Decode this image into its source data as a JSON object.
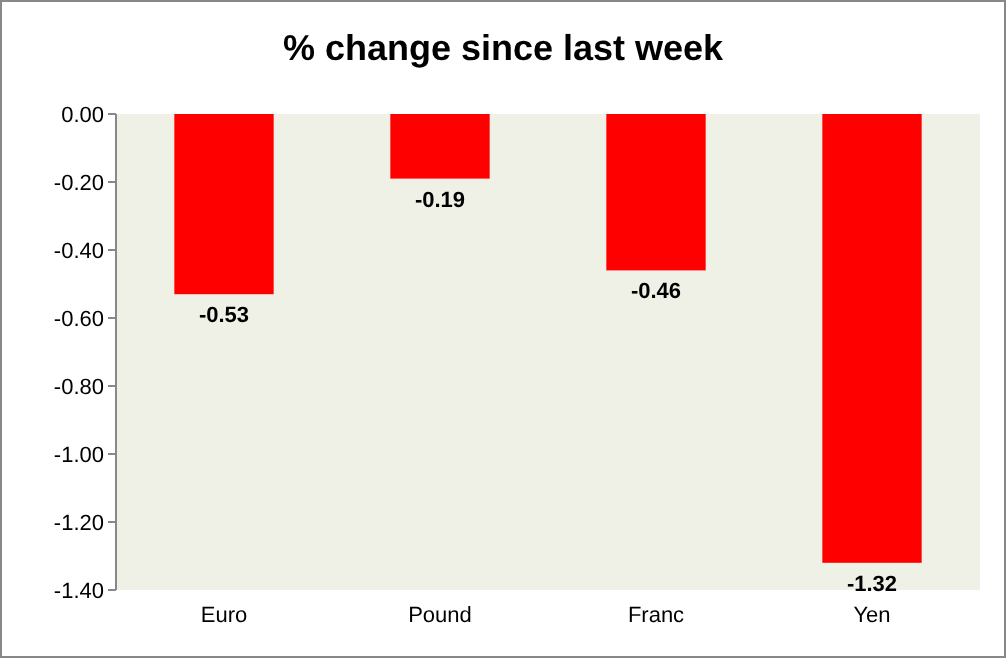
{
  "chart_data": {
    "type": "bar",
    "title": "% change since last week",
    "categories": [
      "Euro",
      "Pound",
      "Franc",
      "Yen"
    ],
    "values": [
      -0.53,
      -0.19,
      -0.46,
      -1.32
    ],
    "color": "#ff0000",
    "ylim": [
      -1.4,
      0
    ],
    "yticks": [
      {
        "value": 0,
        "label": "0.00"
      },
      {
        "value": -0.2,
        "label": "-0.20"
      },
      {
        "value": -0.4,
        "label": "-0.40"
      },
      {
        "value": -0.6,
        "label": "-0.60"
      },
      {
        "value": -0.8,
        "label": "-0.80"
      },
      {
        "value": -1,
        "label": "-1.00"
      },
      {
        "value": -1.2,
        "label": "-1.20"
      },
      {
        "value": -1.4,
        "label": "-1.40"
      }
    ],
    "data_labels": true,
    "grid": false
  }
}
